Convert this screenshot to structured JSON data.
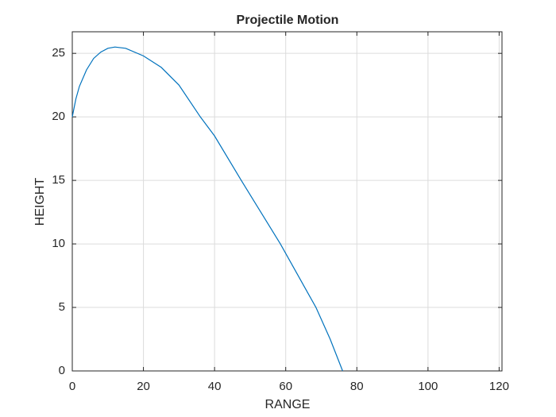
{
  "chart_data": {
    "type": "line",
    "title": "Projectile Motion",
    "x_label": "RANGE",
    "y_label": "HEIGHT",
    "x": [
      0,
      1,
      2,
      4,
      6,
      8,
      10,
      12,
      15,
      20,
      25,
      30,
      36,
      40,
      47.5,
      53,
      58.5,
      63.5,
      68.5,
      72.5,
      76
    ],
    "series": [
      {
        "color": "#0072bd",
        "values": [
          20,
          21.4,
          22.4,
          23.7,
          24.6,
          25.1,
          25.4,
          25.5,
          25.4,
          24.8,
          23.9,
          22.5,
          20,
          18.5,
          15,
          12.5,
          10,
          7.5,
          5,
          2.5,
          0
        ]
      }
    ],
    "xlim": [
      0,
      120.8
    ],
    "ylim": [
      0,
      26.7
    ],
    "xticks": [
      0,
      20,
      40,
      60,
      80,
      100,
      120
    ],
    "yticks": [
      0,
      5,
      10,
      15,
      20,
      25
    ],
    "grid": true
  }
}
